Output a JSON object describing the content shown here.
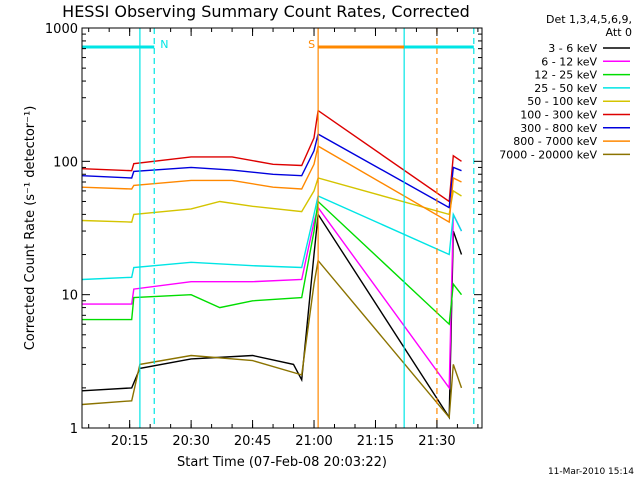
{
  "colors": {
    "background": "#ffffff",
    "axes": "#000000",
    "eclipse": "#00e5e5",
    "saa": "#ff8800"
  },
  "date_stamp": "11-Mar-2010 15:14",
  "chart_data": {
    "type": "line",
    "title": "HESSI Observing Summary Count Rates, Corrected",
    "xlabel": "Start Time (07-Feb-08 20:03:22)",
    "ylabel": "Corrected Count Rate (s⁻¹ detector⁻¹)",
    "y_scale": "log",
    "ylim": [
      1,
      1000
    ],
    "xlim": [
      "20:03:22",
      "21:41:00"
    ],
    "x_ticks": [
      "20:15",
      "20:30",
      "20:45",
      "21:00",
      "21:15",
      "21:30"
    ],
    "y_ticks": [
      "1",
      "10",
      "100",
      "1000"
    ],
    "grid": false,
    "legend_position": "top-right",
    "legend_header": [
      "Det 1,3,4,5,6,9,",
      "Att 0"
    ],
    "markers": [
      {
        "label": "N",
        "color": "#00e5e5",
        "start": "20:03:22",
        "end": "20:21:00",
        "style": "night"
      },
      {
        "label": "S",
        "color": "#ff8800",
        "start": "21:01:00",
        "end": "21:30:00",
        "style": "saa"
      },
      {
        "label": "",
        "color": "#00e5e5",
        "start": "21:22:00",
        "end": "21:39:00",
        "style": "night"
      }
    ],
    "vertical_lines": [
      {
        "time": "20:17:30",
        "color": "#00e5e5",
        "dash": false
      },
      {
        "time": "20:21:00",
        "color": "#00e5e5",
        "dash": true
      },
      {
        "time": "21:01:00",
        "color": "#ff8800",
        "dash": false
      },
      {
        "time": "21:22:00",
        "color": "#00e5e5",
        "dash": false
      },
      {
        "time": "21:30:00",
        "color": "#ff8800",
        "dash": true
      },
      {
        "time": "21:39:00",
        "color": "#00e5e5",
        "dash": true
      }
    ],
    "series": [
      {
        "name": "3 - 6 keV",
        "color": "#000000",
        "points": [
          [
            "20:03:22",
            1.9
          ],
          [
            "20:15:30",
            2.0
          ],
          [
            "20:17:30",
            2.8
          ],
          [
            "20:30",
            3.3
          ],
          [
            "20:45",
            3.5
          ],
          [
            "20:55",
            3.0
          ],
          [
            "20:57",
            2.3
          ],
          [
            "21:00",
            20
          ],
          [
            "21:01",
            40
          ],
          [
            "21:33",
            1.2
          ],
          [
            "21:34",
            30
          ],
          [
            "21:36",
            20
          ]
        ]
      },
      {
        "name": "6 - 12 keV",
        "color": "#ff00ff",
        "points": [
          [
            "20:03:22",
            8.5
          ],
          [
            "20:15:30",
            8.5
          ],
          [
            "20:16",
            11
          ],
          [
            "20:30",
            12.5
          ],
          [
            "20:45",
            12.5
          ],
          [
            "20:57",
            13
          ],
          [
            "21:00",
            35
          ],
          [
            "21:01",
            45
          ],
          [
            "21:33",
            2
          ],
          [
            "21:34",
            40
          ],
          [
            "21:36",
            30
          ]
        ]
      },
      {
        "name": "12 - 25 keV",
        "color": "#00dd00",
        "points": [
          [
            "20:03:22",
            6.5
          ],
          [
            "20:15:30",
            6.5
          ],
          [
            "20:16",
            9.5
          ],
          [
            "20:30",
            10
          ],
          [
            "20:37",
            8
          ],
          [
            "20:45",
            9
          ],
          [
            "20:57",
            9.5
          ],
          [
            "21:00",
            30
          ],
          [
            "21:01",
            50
          ],
          [
            "21:33",
            6
          ],
          [
            "21:34",
            12
          ],
          [
            "21:36",
            10
          ]
        ]
      },
      {
        "name": "25 - 50 keV",
        "color": "#00e5e5",
        "points": [
          [
            "20:03:22",
            13
          ],
          [
            "20:15:30",
            13.5
          ],
          [
            "20:16",
            16
          ],
          [
            "20:30",
            17.5
          ],
          [
            "20:45",
            16.5
          ],
          [
            "20:57",
            16
          ],
          [
            "21:00",
            40
          ],
          [
            "21:01",
            55
          ],
          [
            "21:33",
            20
          ],
          [
            "21:34",
            40
          ],
          [
            "21:36",
            30
          ]
        ]
      },
      {
        "name": "50 - 100 keV",
        "color": "#d4c400",
        "points": [
          [
            "20:03:22",
            36
          ],
          [
            "20:15:30",
            35
          ],
          [
            "20:16",
            40
          ],
          [
            "20:30",
            44
          ],
          [
            "20:37",
            50
          ],
          [
            "20:45",
            46
          ],
          [
            "20:57",
            42
          ],
          [
            "21:00",
            60
          ],
          [
            "21:01",
            75
          ],
          [
            "21:33",
            40
          ],
          [
            "21:34",
            60
          ],
          [
            "21:36",
            55
          ]
        ]
      },
      {
        "name": "100 - 300 keV",
        "color": "#dd0000",
        "points": [
          [
            "20:03:22",
            88
          ],
          [
            "20:15:30",
            85
          ],
          [
            "20:16",
            96
          ],
          [
            "20:30",
            108
          ],
          [
            "20:40",
            108
          ],
          [
            "20:50",
            95
          ],
          [
            "20:57",
            93
          ],
          [
            "21:00",
            150
          ],
          [
            "21:01",
            240
          ],
          [
            "21:33",
            50
          ],
          [
            "21:34",
            110
          ],
          [
            "21:36",
            100
          ]
        ]
      },
      {
        "name": "300 - 800 keV",
        "color": "#0000dd",
        "points": [
          [
            "20:03:22",
            78
          ],
          [
            "20:15:30",
            75
          ],
          [
            "20:16",
            84
          ],
          [
            "20:30",
            90
          ],
          [
            "20:40",
            86
          ],
          [
            "20:50",
            80
          ],
          [
            "20:57",
            78
          ],
          [
            "21:00",
            120
          ],
          [
            "21:01",
            160
          ],
          [
            "21:33",
            45
          ],
          [
            "21:34",
            90
          ],
          [
            "21:36",
            85
          ]
        ]
      },
      {
        "name": "800 - 7000 keV",
        "color": "#ff8800",
        "points": [
          [
            "20:03:22",
            64
          ],
          [
            "20:15:30",
            62
          ],
          [
            "20:16",
            66
          ],
          [
            "20:30",
            72
          ],
          [
            "20:40",
            72
          ],
          [
            "20:50",
            64
          ],
          [
            "20:57",
            62
          ],
          [
            "21:00",
            95
          ],
          [
            "21:01",
            130
          ],
          [
            "21:33",
            35
          ],
          [
            "21:34",
            75
          ],
          [
            "21:36",
            70
          ]
        ]
      },
      {
        "name": "7000 - 20000 keV",
        "color": "#8b7300",
        "points": [
          [
            "20:03:22",
            1.5
          ],
          [
            "20:15:30",
            1.6
          ],
          [
            "20:17:30",
            3.0
          ],
          [
            "20:30",
            3.5
          ],
          [
            "20:45",
            3.2
          ],
          [
            "20:57",
            2.5
          ],
          [
            "21:00",
            12
          ],
          [
            "21:01",
            18
          ],
          [
            "21:33",
            1.2
          ],
          [
            "21:34",
            3
          ],
          [
            "21:36",
            2
          ]
        ]
      }
    ]
  }
}
